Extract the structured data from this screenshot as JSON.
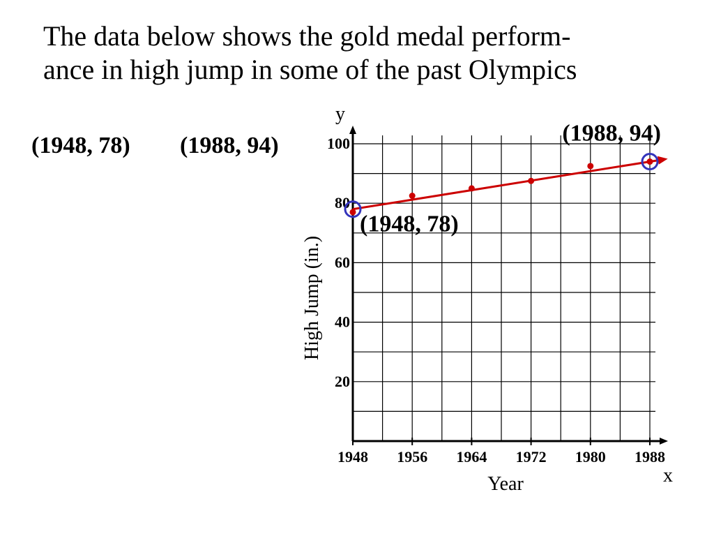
{
  "title_lines": [
    "The data below shows the gold medal perform-",
    "ance in high jump in some of the past Olympics"
  ],
  "points_text": {
    "first": "(1948, 78)",
    "second": "(1988, 94)"
  },
  "colors": {
    "data": "#cc0000",
    "highlight": "#3333bb",
    "grid": "#000000"
  },
  "chart_data": {
    "type": "scatter",
    "x": [
      1948,
      1956,
      1964,
      1972,
      1980,
      1988
    ],
    "y": [
      77,
      82.5,
      85,
      87.5,
      92.5,
      94
    ],
    "fit_line": {
      "from": [
        1948,
        78
      ],
      "to": [
        1988,
        94
      ]
    },
    "highlighted_points": [
      [
        1948,
        78
      ],
      [
        1988,
        94
      ]
    ],
    "annotations": [
      {
        "text": "(1988, 94)",
        "x": 1988,
        "y": 94
      },
      {
        "text": "(1948, 78)",
        "x": 1948,
        "y": 78
      }
    ],
    "x_axis": {
      "name": "x",
      "label": "Year",
      "min": 1948,
      "max": 1988,
      "ticks": [
        1948,
        1956,
        1964,
        1972,
        1980,
        1988
      ],
      "tick_labels": [
        "1948",
        "1956",
        "1964",
        "1972",
        "1980",
        "1988"
      ],
      "gridline_step": 4
    },
    "y_axis": {
      "name": "y",
      "label": "High Jump (in.)",
      "min": 0,
      "max": 100,
      "ticks": [
        20,
        40,
        60,
        80,
        100
      ],
      "tick_labels": [
        "20",
        "40",
        "60",
        "80",
        "100"
      ],
      "gridline_step": 10
    },
    "grid": true,
    "legend": "none"
  }
}
